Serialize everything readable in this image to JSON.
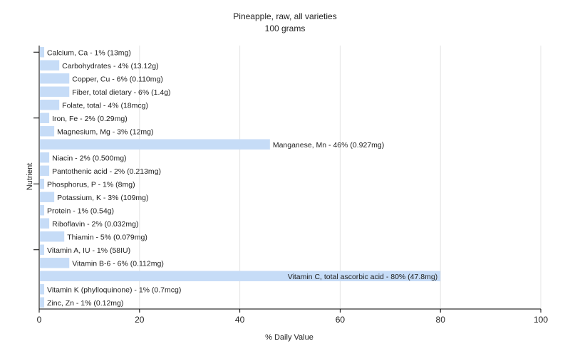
{
  "chart_data": {
    "type": "bar",
    "orientation": "horizontal",
    "title": "Pineapple, raw, all varieties",
    "subtitle": "100 grams",
    "xlabel": "% Daily Value",
    "ylabel": "Nutrient",
    "xlim": [
      0,
      100
    ],
    "xticks": [
      "0",
      "20",
      "40",
      "60",
      "80",
      "100"
    ],
    "grid": true,
    "bar_color": "#c6dcf7",
    "categories": [
      "Calcium, Ca",
      "Carbohydrates",
      "Copper, Cu",
      "Fiber, total dietary",
      "Folate, total",
      "Iron, Fe",
      "Magnesium, Mg",
      "Manganese, Mn",
      "Niacin",
      "Pantothenic acid",
      "Phosphorus, P",
      "Potassium, K",
      "Protein",
      "Riboflavin",
      "Thiamin",
      "Vitamin A, IU",
      "Vitamin B-6",
      "Vitamin C, total ascorbic acid",
      "Vitamin K (phylloquinone)",
      "Zinc, Zn"
    ],
    "values": [
      1,
      4,
      6,
      6,
      4,
      2,
      3,
      46,
      2,
      2,
      1,
      3,
      1,
      2,
      5,
      1,
      6,
      80,
      1,
      1
    ],
    "labels": [
      "Calcium, Ca - 1% (13mg)",
      "Carbohydrates - 4% (13.12g)",
      "Copper, Cu - 6% (0.110mg)",
      "Fiber, total dietary - 6% (1.4g)",
      "Folate, total - 4% (18mcg)",
      "Iron, Fe - 2% (0.29mg)",
      "Magnesium, Mg - 3% (12mg)",
      "Manganese, Mn - 46% (0.927mg)",
      "Niacin - 2% (0.500mg)",
      "Pantothenic acid - 2% (0.213mg)",
      "Phosphorus, P - 1% (8mg)",
      "Potassium, K - 3% (109mg)",
      "Protein - 1% (0.54g)",
      "Riboflavin - 2% (0.032mg)",
      "Thiamin - 5% (0.079mg)",
      "Vitamin A, IU - 1% (58IU)",
      "Vitamin B-6 - 6% (0.112mg)",
      "Vitamin C, total ascorbic acid - 80% (47.8mg)",
      "Vitamin K (phylloquinone) - 1% (0.7mcg)",
      "Zinc, Zn - 1% (0.12mg)"
    ]
  }
}
